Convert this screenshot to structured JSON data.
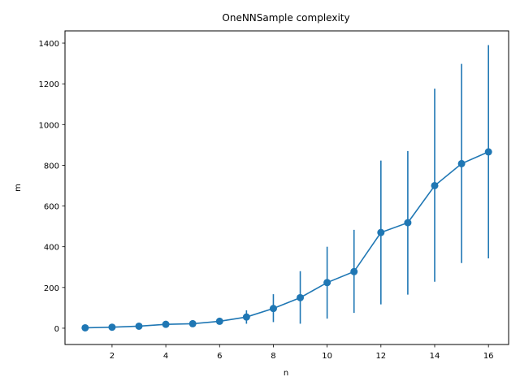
{
  "chart_data": {
    "type": "line",
    "title": "OneNNSample complexity",
    "xlabel": "n",
    "ylabel": "m",
    "xlim": [
      0.25,
      16.75
    ],
    "ylim": [
      -80,
      1460
    ],
    "xticks": [
      2,
      4,
      6,
      8,
      10,
      12,
      14,
      16
    ],
    "yticks": [
      0,
      200,
      400,
      600,
      800,
      1000,
      1200,
      1400
    ],
    "grid": false,
    "legend": "none",
    "series": [
      {
        "color": "#1f77b4",
        "marker": "circle",
        "x": [
          1,
          2,
          3,
          4,
          5,
          6,
          7,
          8,
          9,
          10,
          11,
          12,
          13,
          14,
          15,
          16
        ],
        "y": [
          2,
          5,
          10,
          19,
          22,
          34,
          55,
          97,
          150,
          224,
          278,
          470,
          518,
          700,
          808,
          866
        ],
        "err_low": [
          2,
          5,
          10,
          19,
          22,
          22,
          22,
          30,
          22,
          47,
          75,
          117,
          165,
          228,
          320,
          343
        ],
        "err_high": [
          2,
          5,
          10,
          19,
          22,
          48,
          88,
          167,
          280,
          400,
          483,
          823,
          870,
          1176,
          1298,
          1390
        ]
      }
    ]
  }
}
